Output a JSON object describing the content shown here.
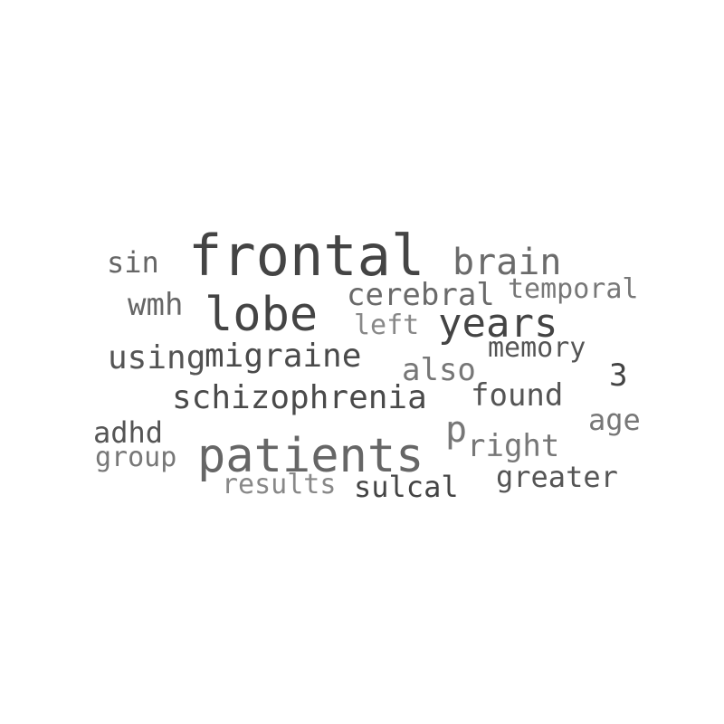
{
  "word_cloud": {
    "words": [
      {
        "text": "frontal",
        "color": "#444444"
      },
      {
        "text": "patients",
        "color": "#666666"
      },
      {
        "text": "lobe",
        "color": "#444444"
      },
      {
        "text": "years",
        "color": "#444444"
      },
      {
        "text": "brain",
        "color": "#6b6b6b"
      },
      {
        "text": "schizophrenia",
        "color": "#4a4a4a"
      },
      {
        "text": "migraine",
        "color": "#4a4a4a"
      },
      {
        "text": "using",
        "color": "#555555"
      },
      {
        "text": "cerebral",
        "color": "#6a6a6a"
      },
      {
        "text": "temporal",
        "color": "#777777"
      },
      {
        "text": "wmh",
        "color": "#666666"
      },
      {
        "text": "sin",
        "color": "#666666"
      },
      {
        "text": "left",
        "color": "#888888"
      },
      {
        "text": "memory",
        "color": "#555555"
      },
      {
        "text": "also",
        "color": "#777777"
      },
      {
        "text": "3",
        "color": "#444444"
      },
      {
        "text": "found",
        "color": "#555555"
      },
      {
        "text": "age",
        "color": "#777777"
      },
      {
        "text": "p",
        "color": "#777777"
      },
      {
        "text": "right",
        "color": "#777777"
      },
      {
        "text": "adhd",
        "color": "#555555"
      },
      {
        "text": "group",
        "color": "#777777"
      },
      {
        "text": "greater",
        "color": "#555555"
      },
      {
        "text": "results",
        "color": "#888888"
      },
      {
        "text": "sulcal",
        "color": "#444444"
      }
    ]
  }
}
